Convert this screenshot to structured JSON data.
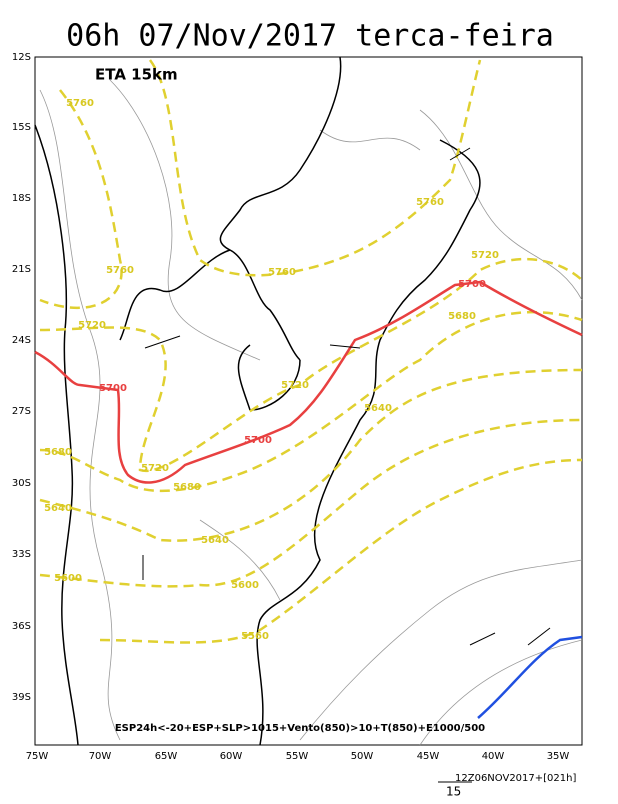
{
  "header": {
    "title": "06h 07/Nov/2017 terca-feira"
  },
  "map": {
    "model_label": "ETA 15km",
    "lat_labels": [
      "12S",
      "15S",
      "18S",
      "21S",
      "24S",
      "27S",
      "30S",
      "33S",
      "36S",
      "39S"
    ],
    "lon_labels": [
      "75W",
      "70W",
      "65W",
      "60W",
      "55W",
      "50W",
      "45W",
      "40W",
      "35W"
    ],
    "thickness_labels": [
      "5760",
      "5760",
      "5760",
      "5760",
      "5720",
      "5720",
      "5720",
      "5720",
      "5700",
      "5700",
      "5700",
      "5680",
      "5680",
      "5680",
      "5640",
      "5640",
      "5640",
      "5600",
      "5600",
      "5560"
    ],
    "caption": "ESP24h<-20+ESP+SLP>1015+Vento(850)>10+T(850)+E1000/500"
  },
  "footer": {
    "run": "12Z06NOV2017+[021h]",
    "vector_scale": "15"
  }
}
